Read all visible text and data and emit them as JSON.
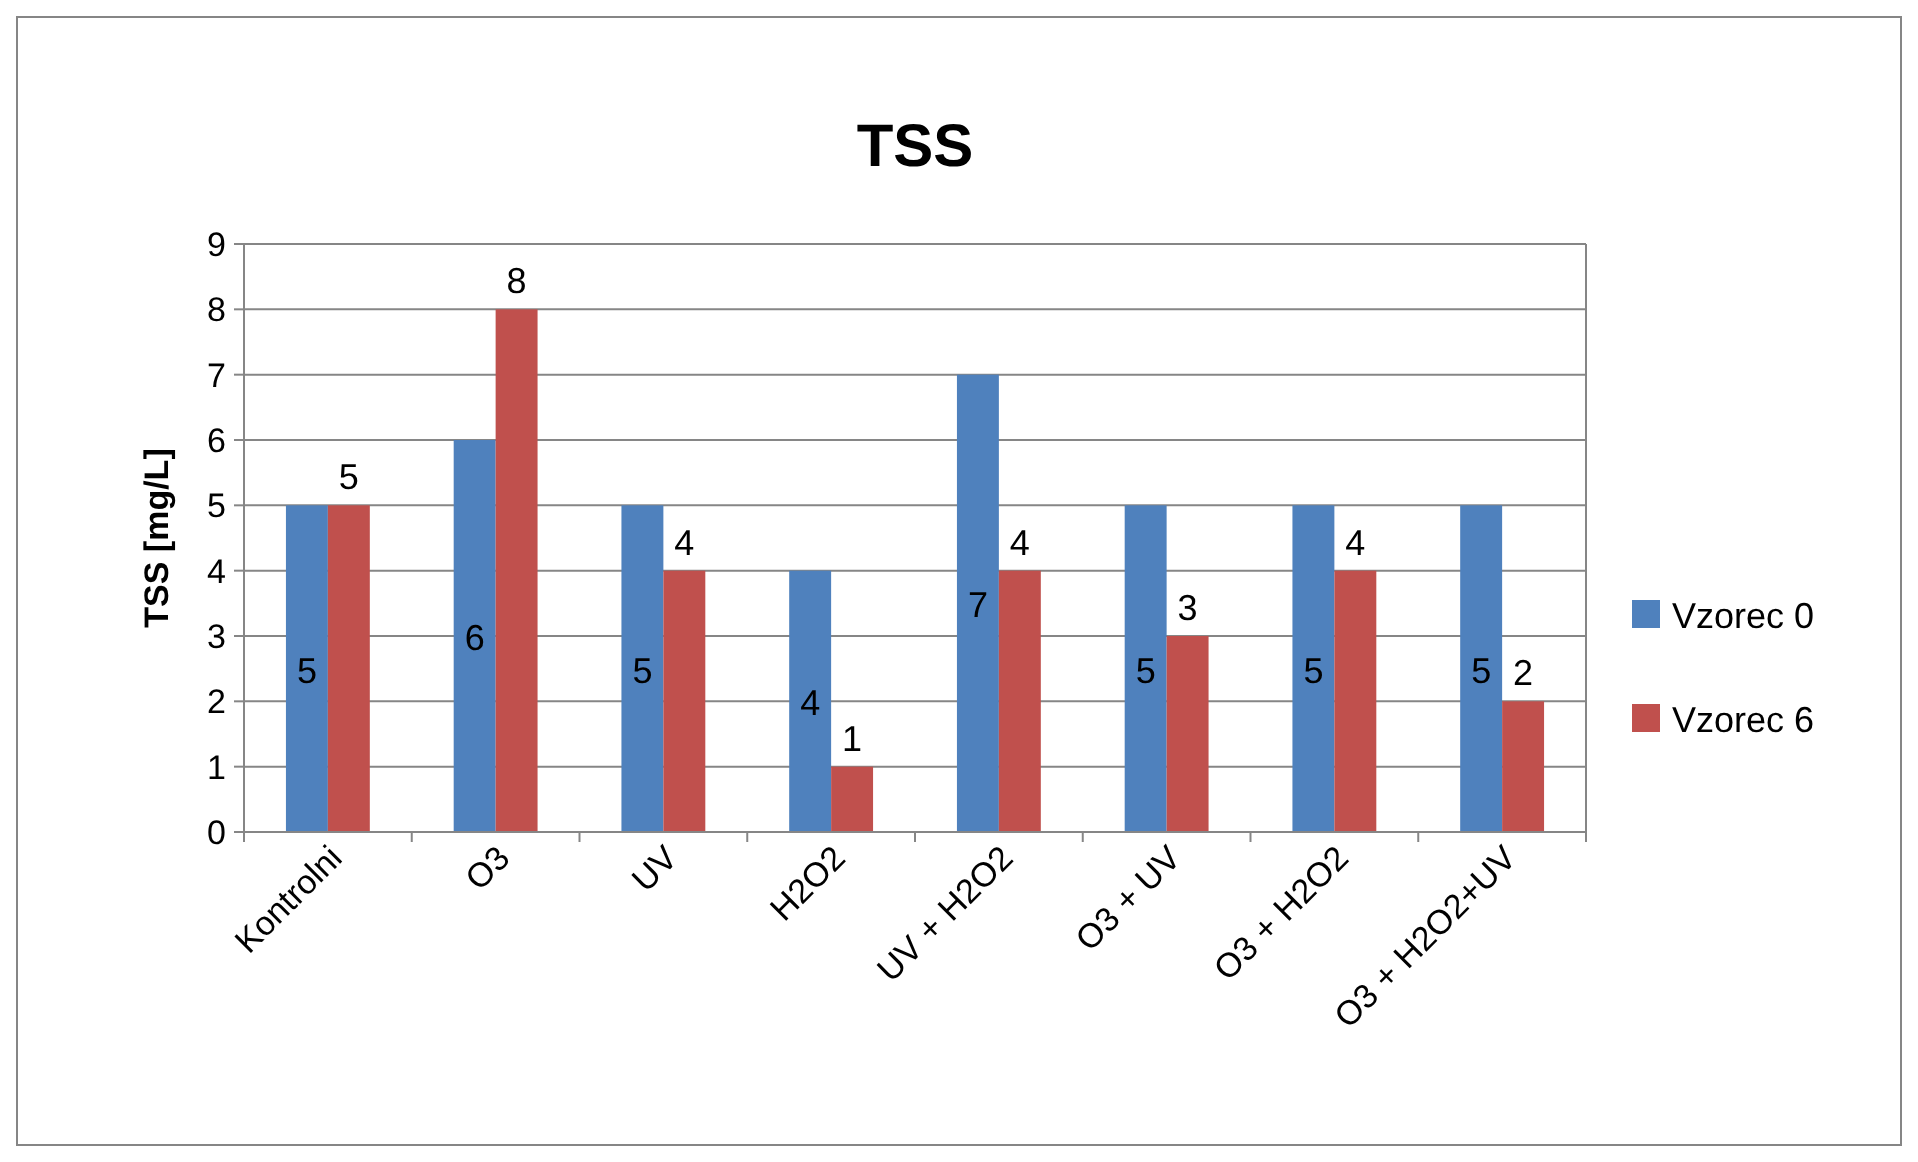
{
  "chart_data": {
    "type": "bar",
    "title": "TSS",
    "ylabel": "TSS [mg/L]",
    "categories": [
      "Kontrolni",
      "O3",
      "UV",
      "H2O2",
      "UV + H2O2",
      "O3 + UV",
      "O3 + H2O2",
      "O3 + H2O2+UV"
    ],
    "series": [
      {
        "name": "Vzorec 0",
        "color": "#4f81bd",
        "values": [
          5,
          6,
          5,
          4,
          7,
          5,
          5,
          5
        ]
      },
      {
        "name": "Vzorec 6",
        "color": "#c0504d",
        "values": [
          5,
          8,
          4,
          1,
          4,
          3,
          4,
          2
        ]
      }
    ],
    "ylim": [
      0,
      9
    ],
    "yticks": [
      0,
      1,
      2,
      3,
      4,
      5,
      6,
      7,
      8,
      9
    ],
    "grid": "y",
    "legend": "right",
    "data_labels": true
  }
}
